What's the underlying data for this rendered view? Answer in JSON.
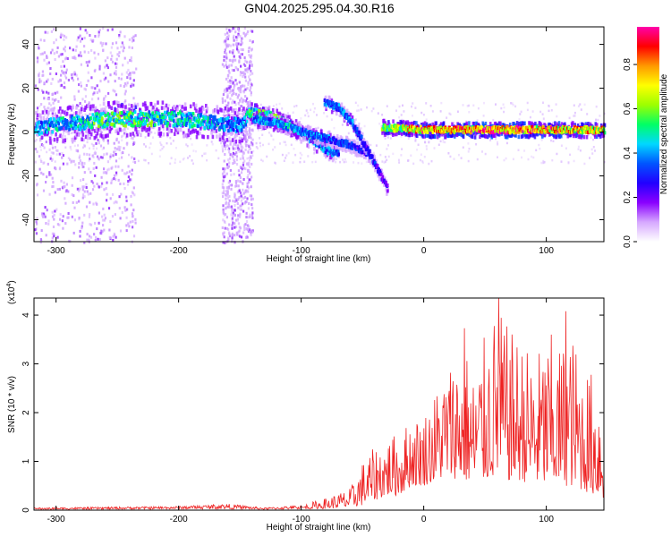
{
  "title": "GN04.2025.295.04.30.R16",
  "chart_data": [
    {
      "type": "heatmap",
      "xlabel": "Height of straight line (km)",
      "ylabel": "Frequency (Hz)",
      "xlim": [
        -318,
        147
      ],
      "ylim": [
        -50,
        48
      ],
      "xticks": [
        -300,
        -200,
        -100,
        0,
        100
      ],
      "yticks": [
        -40,
        -20,
        0,
        20,
        40
      ],
      "grid": false,
      "colorbar": {
        "label": "Normalized spectral amplitude",
        "range": [
          0.0,
          0.97
        ],
        "ticks": [
          0.0,
          0.2,
          0.4,
          0.6,
          0.8
        ],
        "colors": [
          "#ffffff",
          "#d6a8ff",
          "#8a00ff",
          "#2200ff",
          "#0055ff",
          "#00d8ff",
          "#00ff66",
          "#9cff00",
          "#ffff00",
          "#ff9900",
          "#ff0000",
          "#ff00aa"
        ]
      },
      "bands": [
        {
          "x": [
            -318,
            -255,
            -200,
            -150,
            -145
          ],
          "center": [
            2,
            6,
            6,
            3,
            6
          ],
          "amp": [
            0.45,
            0.6,
            0.55,
            0.45,
            0.55
          ],
          "width": 7
        },
        {
          "x": [
            -145,
            -130,
            -110,
            -90,
            -80,
            -70
          ],
          "center": [
            9,
            8,
            3,
            -4,
            -8,
            -10
          ],
          "amp": [
            0.6,
            0.65,
            0.55,
            0.5,
            0.45,
            0.4
          ],
          "width": 4
        },
        {
          "x": [
            -140,
            -120,
            -100,
            -80,
            -60,
            -45
          ],
          "center": [
            6,
            4,
            0,
            -3,
            -6,
            -10
          ],
          "amp": [
            0.45,
            0.5,
            0.45,
            0.4,
            0.35,
            0.3
          ],
          "width": 3
        },
        {
          "x": [
            -82,
            -70,
            -60,
            -50,
            -40,
            -30
          ],
          "center": [
            14,
            11,
            5,
            -5,
            -15,
            -26
          ],
          "amp": [
            0.45,
            0.45,
            0.4,
            0.35,
            0.3,
            0.25
          ],
          "width": 3
        },
        {
          "x": [
            -35,
            0,
            50,
            100,
            147
          ],
          "center": [
            2,
            1,
            1,
            1,
            1
          ],
          "amp": [
            0.65,
            0.92,
            0.95,
            0.9,
            0.85
          ],
          "width": 3
        }
      ],
      "scatter_regions": [
        {
          "x": [
            -318,
            -235
          ],
          "y": [
            -50,
            48
          ],
          "density": 0.55
        },
        {
          "x": [
            -165,
            -140
          ],
          "y": [
            -50,
            48
          ],
          "density": 0.5
        }
      ]
    },
    {
      "type": "line",
      "xlabel": "Height of straight line (km)",
      "ylabel": "SNR (10 * v/v)",
      "yscale_label": "(x10",
      "yscale_exp": "4",
      "yscale_close": ")",
      "xlim": [
        -318,
        147
      ],
      "ylim": [
        0,
        4.35
      ],
      "xticks": [
        -300,
        -200,
        -100,
        0,
        100
      ],
      "yticks": [
        0,
        1,
        2,
        3,
        4
      ],
      "line_color": "#ee2222",
      "envelope_x": [
        -318,
        -200,
        -160,
        -130,
        -100,
        -80,
        -60,
        -50,
        -40,
        -30,
        -20,
        -10,
        0,
        10,
        20,
        30,
        35,
        40,
        50,
        60,
        70,
        80,
        90,
        100,
        110,
        120,
        130,
        140,
        147
      ],
      "envelope_y": [
        0.05,
        0.08,
        0.13,
        0.05,
        0.1,
        0.25,
        0.45,
        1.0,
        1.3,
        1.5,
        1.6,
        1.9,
        2.0,
        2.5,
        3.0,
        3.4,
        3.3,
        2.8,
        3.6,
        4.2,
        3.7,
        3.5,
        3.2,
        3.5,
        3.4,
        3.7,
        3.0,
        2.8,
        2.4
      ],
      "floor_y": [
        0.01,
        0.02,
        0.02,
        0.01,
        0.02,
        0.03,
        0.05,
        0.1,
        0.2,
        0.3,
        0.3,
        0.5,
        0.5,
        0.6,
        0.7,
        0.6,
        0.6,
        0.5,
        0.6,
        0.7,
        0.6,
        0.6,
        0.5,
        0.5,
        0.5,
        0.5,
        0.4,
        0.3,
        0.2
      ],
      "peaks": [
        {
          "x": 61,
          "y": 4.35
        },
        {
          "x": 116,
          "y": 4.08
        },
        {
          "x": 33,
          "y": 3.73
        },
        {
          "x": 104,
          "y": 3.6
        }
      ],
      "n_points": 900
    }
  ]
}
